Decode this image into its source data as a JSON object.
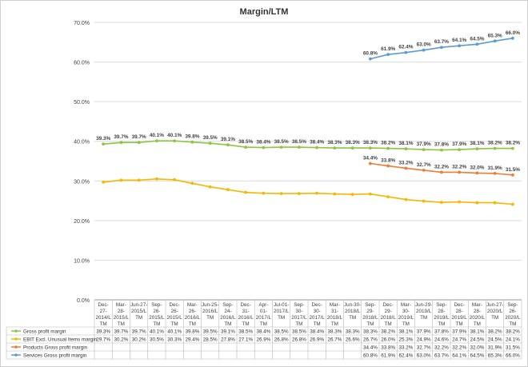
{
  "chart_data": {
    "type": "line",
    "title": "Margin/LTM",
    "xlabel": "",
    "ylabel": "",
    "ylim": [
      0,
      70
    ],
    "yticks": [
      "0.0%",
      "10.0%",
      "20.0%",
      "30.0%",
      "40.0%",
      "50.0%",
      "60.0%",
      "70.0%"
    ],
    "grid": true,
    "legend_position": "bottom (data table)",
    "categories": [
      [
        "Dec-",
        "27-",
        "2014/L",
        "TM"
      ],
      [
        "Mar-",
        "28-",
        "2015/L",
        "TM"
      ],
      [
        "Jun-27-",
        "2015/L",
        "TM"
      ],
      [
        "Sep-",
        "26-",
        "2015/L",
        "TM"
      ],
      [
        "Dec-",
        "26-",
        "2015/L",
        "TM"
      ],
      [
        "Mar-",
        "26-",
        "2016/L",
        "TM"
      ],
      [
        "Jun-25-",
        "2016/L",
        "TM"
      ],
      [
        "Sep-",
        "24-",
        "2016/L",
        "TM"
      ],
      [
        "Dec-",
        "31-",
        "2016/L",
        "TM"
      ],
      [
        "Apr-",
        "01-",
        "2017/L",
        "TM"
      ],
      [
        "Jul-01-",
        "2017/L",
        "TM"
      ],
      [
        "Sep-",
        "30-",
        "2017/L",
        "TM"
      ],
      [
        "Dec-",
        "30-",
        "2017/L",
        "TM"
      ],
      [
        "Mar-",
        "31-",
        "2018/L",
        "TM"
      ],
      [
        "Jun-30-",
        "2018/L",
        "TM"
      ],
      [
        "Sep-",
        "29-",
        "2018/L",
        "TM"
      ],
      [
        "Dec-",
        "29-",
        "2018/L",
        "TM"
      ],
      [
        "Mar-",
        "30-",
        "2019/L",
        "TM"
      ],
      [
        "Jun-29-",
        "2019/L",
        "TM"
      ],
      [
        "Sep-",
        "28-",
        "2019/L",
        "TM"
      ],
      [
        "Dec-",
        "28-",
        "2019/L",
        "TM"
      ],
      [
        "Mar-",
        "28-",
        "2020/L",
        "TM"
      ],
      [
        "Jun-27-",
        "2020/L",
        "TM"
      ],
      [
        "Sep-",
        "26-",
        "2020/L",
        "TM"
      ]
    ],
    "series": [
      {
        "name": "Gross profit margin",
        "color": "#8cc63f",
        "labeled": true,
        "values": [
          39.3,
          39.7,
          39.7,
          40.1,
          40.1,
          39.8,
          39.5,
          39.1,
          38.5,
          38.4,
          38.5,
          38.5,
          38.4,
          38.3,
          38.3,
          38.3,
          38.2,
          38.1,
          37.9,
          37.8,
          37.9,
          38.1,
          38.2,
          38.2
        ],
        "table": [
          "39.3%",
          "39.7%",
          "39.7%",
          "40.1%",
          "40.1%",
          "39.8%",
          "39.5%",
          "39.1%",
          "38.5%",
          "38.4%",
          "38.5%",
          "38.5%",
          "38.4%",
          "38.3%",
          "38.3%",
          "38.3%",
          "38.2%",
          "38.1%",
          "37.9%",
          "37.8%",
          "37.9%",
          "38.1%",
          "38.2%",
          "38.2%"
        ]
      },
      {
        "name": "EBIT Excl. Unusual Items margin",
        "color": "#f5b800",
        "labeled": false,
        "values": [
          29.7,
          30.2,
          30.2,
          30.5,
          30.3,
          29.4,
          28.5,
          27.8,
          27.1,
          26.9,
          26.8,
          26.8,
          26.9,
          26.7,
          26.6,
          26.7,
          26.0,
          25.3,
          24.9,
          24.6,
          24.7,
          24.5,
          24.5,
          24.1
        ],
        "table": [
          "29.7%",
          "30.2%",
          "30.2%",
          "30.5%",
          "30.3%",
          "29.4%",
          "28.5%",
          "27.8%",
          "27.1%",
          "26.9%",
          "26.8%",
          "26.8%",
          "26.9%",
          "26.7%",
          "26.6%",
          "26.7%",
          "26.0%",
          "25.3%",
          "24.9%",
          "24.6%",
          "24.7%",
          "24.5%",
          "24.5%",
          "24.1%"
        ]
      },
      {
        "name": "Products Gross profit margin",
        "color": "#ed7d31",
        "labeled": true,
        "values": [
          null,
          null,
          null,
          null,
          null,
          null,
          null,
          null,
          null,
          null,
          null,
          null,
          null,
          null,
          null,
          34.4,
          33.8,
          33.2,
          32.7,
          32.2,
          32.2,
          32.0,
          31.9,
          31.5
        ],
        "table": [
          "",
          "",
          "",
          "",
          "",
          "",
          "",
          "",
          "",
          "",
          "",
          "",
          "",
          "",
          "",
          "34.4%",
          "33.8%",
          "33.2%",
          "32.7%",
          "32.2%",
          "32.2%",
          "32.0%",
          "31.9%",
          "31.5%"
        ]
      },
      {
        "name": "Services Gross profit margin",
        "color": "#5b9bd5",
        "labeled": true,
        "values": [
          null,
          null,
          null,
          null,
          null,
          null,
          null,
          null,
          null,
          null,
          null,
          null,
          null,
          null,
          null,
          60.8,
          61.9,
          62.4,
          63.0,
          63.7,
          64.1,
          64.5,
          65.3,
          66.0
        ],
        "table": [
          "",
          "",
          "",
          "",
          "",
          "",
          "",
          "",
          "",
          "",
          "",
          "",
          "",
          "",
          "",
          "60.8%",
          "61.9%",
          "62.4%",
          "63.0%",
          "63.7%",
          "64.1%",
          "64.5%",
          "65.3%",
          "66.0%"
        ]
      }
    ]
  }
}
